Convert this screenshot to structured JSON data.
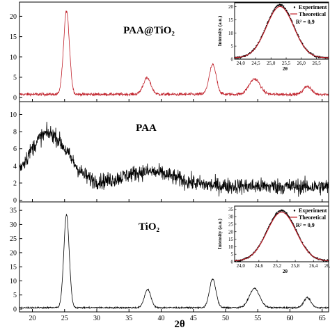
{
  "chart_data": [
    {
      "type": "line",
      "label": "PAA@TiO₂",
      "xlim": [
        18,
        66
      ],
      "ylim": [
        -1,
        23.5
      ],
      "yticks": [
        0,
        5,
        10,
        15,
        20
      ],
      "color": "#c0202a",
      "peaks": [
        {
          "x": 25.3,
          "y": 20.5,
          "w": 0.45
        },
        {
          "x": 37.8,
          "y": 4.0,
          "w": 0.6
        },
        {
          "x": 48.0,
          "y": 7.3,
          "w": 0.55
        },
        {
          "x": 54.5,
          "y": 3.8,
          "w": 0.85
        },
        {
          "x": 62.7,
          "y": 2.0,
          "w": 0.6
        }
      ],
      "baseline": 0.8,
      "noise": 0.35,
      "inset": {
        "xlim": [
          23.8,
          26.9
        ],
        "ylim": [
          0,
          21.5
        ],
        "xticks": [
          "24,0",
          "24,5",
          "25,0",
          "25,5",
          "26,0",
          "26,5"
        ],
        "xtick_values": [
          24.0,
          24.5,
          25.0,
          25.5,
          26.0,
          26.5
        ],
        "yticks": [
          0,
          5,
          10,
          15,
          20
        ],
        "peak": {
          "x": 25.3,
          "y": 20.2,
          "w": 0.45
        },
        "xlabel": "2θ",
        "ylabel": "Intensity (a.u.)",
        "legend": [
          "Experiment",
          "Theoretical",
          "R² = 0,9"
        ],
        "curve_color": "#c0202a"
      }
    },
    {
      "type": "line",
      "label": "PAA",
      "xlim": [
        18,
        66
      ],
      "ylim": [
        -0.2,
        11.5
      ],
      "yticks": [
        0,
        2,
        4,
        6,
        8,
        10
      ],
      "color": "#000000",
      "humps": [
        {
          "x": 22.5,
          "y": 6.0,
          "w": 3.0
        },
        {
          "x": 38.0,
          "y": 1.6,
          "w": 4.0
        }
      ],
      "baseline": 1.8,
      "noise": 0.9
    },
    {
      "type": "line",
      "label": "TiO₂",
      "xlim": [
        18,
        66
      ],
      "ylim": [
        -1,
        38
      ],
      "yticks": [
        0,
        5,
        10,
        15,
        20,
        25,
        30,
        35
      ],
      "color": "#000000",
      "peaks": [
        {
          "x": 25.3,
          "y": 33.0,
          "w": 0.42
        },
        {
          "x": 37.9,
          "y": 6.5,
          "w": 0.5
        },
        {
          "x": 48.0,
          "y": 10.2,
          "w": 0.5
        },
        {
          "x": 54.5,
          "y": 6.8,
          "w": 0.8
        },
        {
          "x": 62.7,
          "y": 3.5,
          "w": 0.55
        }
      ],
      "baseline": 0.5,
      "noise": 0.25,
      "inset": {
        "xlim": [
          23.8,
          26.9
        ],
        "ylim": [
          0,
          37
        ],
        "xticks": [
          "24,0",
          "24,6",
          "25,2",
          "25,8",
          "26,4",
          "26,9"
        ],
        "xtick_values": [
          24.0,
          24.6,
          25.2,
          25.8,
          26.4,
          26.9
        ],
        "yticks": [
          0,
          5,
          10,
          15,
          20,
          25,
          30,
          35
        ],
        "peak": {
          "x": 25.35,
          "y": 33.5,
          "w": 0.48
        },
        "xlabel": "2θ",
        "ylabel": "Intensity (a.u.)",
        "legend": [
          "Experiment",
          "Theoretical",
          "R² = 0,9"
        ],
        "curve_color": "#c0202a"
      }
    }
  ],
  "shared_x": {
    "ticks": [
      20,
      25,
      30,
      35,
      40,
      45,
      50,
      55,
      60,
      65
    ],
    "tick_labels": [
      "20",
      "25",
      "30",
      "35",
      "40",
      "45",
      "50",
      "55",
      "60",
      "65"
    ],
    "label": "2θ"
  }
}
